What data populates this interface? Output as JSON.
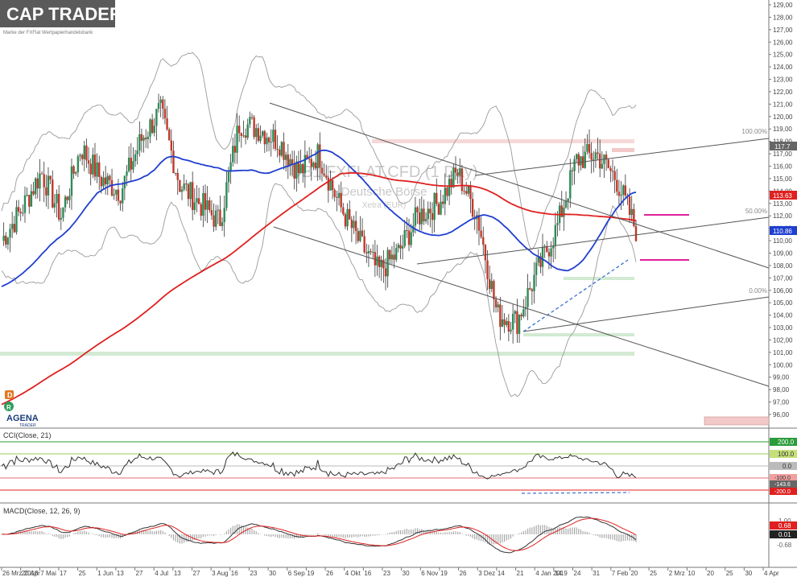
{
  "branding": {
    "logo_text": "CAP TRADER",
    "logo_tagline": "Marke der FXFlat Wertpapierhandelsbank",
    "agena_text": "AGENA",
    "agena_sub": "TRADER"
  },
  "colors": {
    "price_up": "#2e8b57",
    "price_down": "#c0392b",
    "ma_blue": "#1f3fd0",
    "ma_red": "#e02020",
    "bands": "#9a9a9a",
    "trend": "#555555",
    "magenta": "#e0209a"
  },
  "main_chart": {
    "watermark_title": "DB1 FXFLAT.CFD (1 Day)",
    "watermark_exchange": "Deutsche Börse",
    "watermark_sub": "Xetra (EUR)",
    "price_labels": {
      "level_top": "117.7",
      "level_red": "113.63",
      "level_last": "110.86"
    },
    "fib_labels": [
      "100.00%",
      "50.00%",
      "0.00%"
    ],
    "marker_d": "D",
    "marker_r": "R",
    "y_ticks": [
      "129,00",
      "128,00",
      "127,00",
      "126,00",
      "125,00",
      "124,00",
      "123,00",
      "122,00",
      "121,00",
      "120,00",
      "119,00",
      "118,00",
      "117,00",
      "116,00",
      "115,00",
      "114,00",
      "113,00",
      "112,00",
      "111,00",
      "110,00",
      "109,00",
      "108,00",
      "107,00",
      "106,00",
      "105,00",
      "104,00",
      "103,00",
      "102,00",
      "101,00",
      "100,00",
      "99,00",
      "98,00",
      "97,00",
      "96,00"
    ]
  },
  "cci_panel": {
    "title": "CCI(Close, 21)",
    "labels": [
      "200.0",
      "100.0",
      "0.0",
      "-100.0",
      "-143.6",
      "-200.0"
    ]
  },
  "macd_panel": {
    "title": "MACD(Close, 12, 26, 9)",
    "labels": [
      "1.00",
      "0.68",
      "0.01",
      "-0.68"
    ]
  },
  "x_axis": {
    "ticks": [
      "26 Mrz 2018",
      "20 Apr",
      "7 Mai",
      "17",
      "25",
      "1 Jun",
      "13",
      "27",
      "4 Jul",
      "13",
      "27",
      "3 Aug",
      "16",
      "23",
      "30",
      "6 Sep",
      "19",
      "26",
      "4 Okt",
      "16",
      "23",
      "30",
      "6 Nov",
      "19",
      "26",
      "3 Dez",
      "14",
      "21",
      "4 Jan 2019",
      "14",
      "24",
      "31",
      "7 Feb",
      "20",
      "25",
      "2 Mrz",
      "10",
      "20",
      "25",
      "30",
      "4 Apr"
    ]
  },
  "chart_data": {
    "type": "candlestick",
    "instrument": "DB1 FXFLAT.CFD (1 Day)",
    "exchange": "Deutsche Börse",
    "currency": "EUR",
    "ylim": [
      96,
      129
    ],
    "last_price": 110.86,
    "sma_blue_last": 110.86,
    "sma_red_last": 113.63,
    "price_path": [
      [
        "26 Mrz 2018",
        110.0
      ],
      [
        "20 Apr",
        112.5
      ],
      [
        "7 Mai",
        115.5
      ],
      [
        "25",
        112.0
      ],
      [
        "1 Jun",
        117.5
      ],
      [
        "13",
        115.0
      ],
      [
        "27",
        114.0
      ],
      [
        "4 Jul",
        118.0
      ],
      [
        "13",
        120.5
      ],
      [
        "27",
        114.5
      ],
      [
        "3 Aug",
        113.0
      ],
      [
        "16",
        111.5
      ],
      [
        "23",
        119.5
      ],
      [
        "30",
        119.0
      ],
      [
        "6 Sep",
        118.0
      ],
      [
        "19",
        115.5
      ],
      [
        "26",
        117.0
      ],
      [
        "4 Okt",
        113.0
      ],
      [
        "16",
        110.0
      ],
      [
        "23",
        107.5
      ],
      [
        "30",
        109.0
      ],
      [
        "6 Nov",
        112.0
      ],
      [
        "19",
        113.0
      ],
      [
        "26",
        115.5
      ],
      [
        "3 Dez",
        112.0
      ],
      [
        "14",
        104.0
      ],
      [
        "21",
        103.5
      ],
      [
        "4 Jan 2019",
        107.5
      ],
      [
        "14",
        111.0
      ],
      [
        "24",
        116.5
      ],
      [
        "31",
        117.0
      ],
      [
        "7 Feb",
        115.0
      ],
      [
        "20",
        110.86
      ]
    ],
    "fibonacci": [
      {
        "label": "100.00%",
        "value": 117.7
      },
      {
        "label": "50.00%",
        "value": 112.2
      },
      {
        "label": "0.00%",
        "value": 105.5
      }
    ],
    "cci": {
      "name": "CCI(Close, 21)",
      "levels": [
        200,
        100,
        0,
        -100,
        -200
      ],
      "last": -143.6
    },
    "macd": {
      "name": "MACD(Close, 12, 26, 9)",
      "values": [
        1.0,
        0.68,
        0.01,
        -0.68
      ]
    }
  }
}
